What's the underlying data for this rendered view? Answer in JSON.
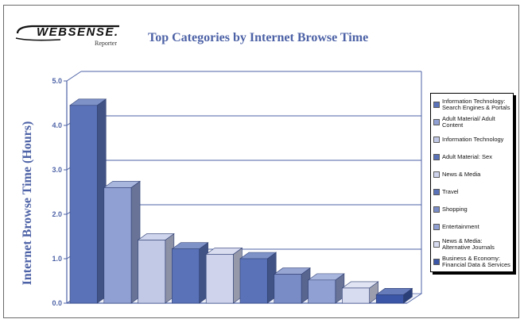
{
  "logo": {
    "word": "WEBSENSE.",
    "sub": "Reporter"
  },
  "chart_data": {
    "type": "bar",
    "title": "Top Categories by Internet Browse Time",
    "ylabel": "Internet Browse Time (Hours)",
    "xlabel": "",
    "ylim": [
      0,
      5
    ],
    "yticks": [
      "0.0",
      "1.0",
      "2.0",
      "3.0",
      "4.0",
      "5.0"
    ],
    "grid": true,
    "legend_position": "right",
    "categories": [
      "Information Technology: Search Engines & Portals",
      "Adult Material/ Adult Content",
      "Information Technology",
      "Adult Material: Sex",
      "News & Media",
      "Travel",
      "Shopping",
      "Entertainment",
      "News & Media: Alternative Journals",
      "Business & Economy: Financial Data & Services"
    ],
    "values": [
      4.45,
      2.6,
      1.42,
      1.22,
      1.1,
      1.0,
      0.65,
      0.52,
      0.34,
      0.19
    ],
    "colors": [
      "#5a73b8",
      "#90a0d2",
      "#c2c9e6",
      "#5a73b8",
      "#cfd4ec",
      "#5a73b8",
      "#7a8cc6",
      "#90a0d2",
      "#d8dcf0",
      "#3b56a6"
    ]
  }
}
